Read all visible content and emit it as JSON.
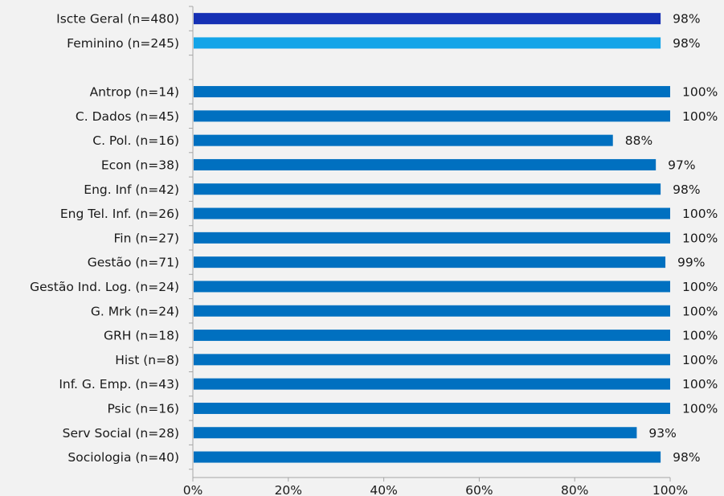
{
  "chart_data": {
    "type": "bar",
    "orientation": "horizontal",
    "categories": [
      "Iscte Geral (n=480)",
      "Feminino (n=245)",
      "",
      "Antrop (n=14)",
      "C. Dados (n=45)",
      "C. Pol. (n=16)",
      "Econ (n=38)",
      "Eng. Inf (n=42)",
      "Eng Tel. Inf. (n=26)",
      "Fin (n=27)",
      "Gestão (n=71)",
      "Gestão Ind. Log. (n=24)",
      "G. Mrk (n=24)",
      "GRH (n=18)",
      "Hist (n=8)",
      "Inf. G. Emp. (n=43)",
      "Psic (n=16)",
      "Serv Social (n=28)",
      "Sociologia (n=40)"
    ],
    "values": [
      98,
      98,
      null,
      100,
      100,
      88,
      97,
      98,
      100,
      100,
      99,
      100,
      100,
      100,
      100,
      100,
      100,
      93,
      98
    ],
    "value_labels": [
      "98%",
      "98%",
      "",
      "100%",
      "100%",
      "88%",
      "97%",
      "98%",
      "100%",
      "100%",
      "99%",
      "100%",
      "100%",
      "100%",
      "100%",
      "100%",
      "100%",
      "93%",
      "98%"
    ],
    "bar_colors": [
      "#1530b4",
      "#13a4e8",
      "#0070c0",
      "#0070c0",
      "#0070c0",
      "#0070c0",
      "#0070c0",
      "#0070c0",
      "#0070c0",
      "#0070c0",
      "#0070c0",
      "#0070c0",
      "#0070c0",
      "#0070c0",
      "#0070c0",
      "#0070c0",
      "#0070c0",
      "#0070c0",
      "#0070c0"
    ],
    "x_ticks": [
      "0%",
      "20%",
      "40%",
      "60%",
      "80%",
      "100%"
    ],
    "xlim": [
      0,
      100
    ],
    "title": "",
    "xlabel": "",
    "ylabel": "",
    "grid": false,
    "legend": "none"
  }
}
